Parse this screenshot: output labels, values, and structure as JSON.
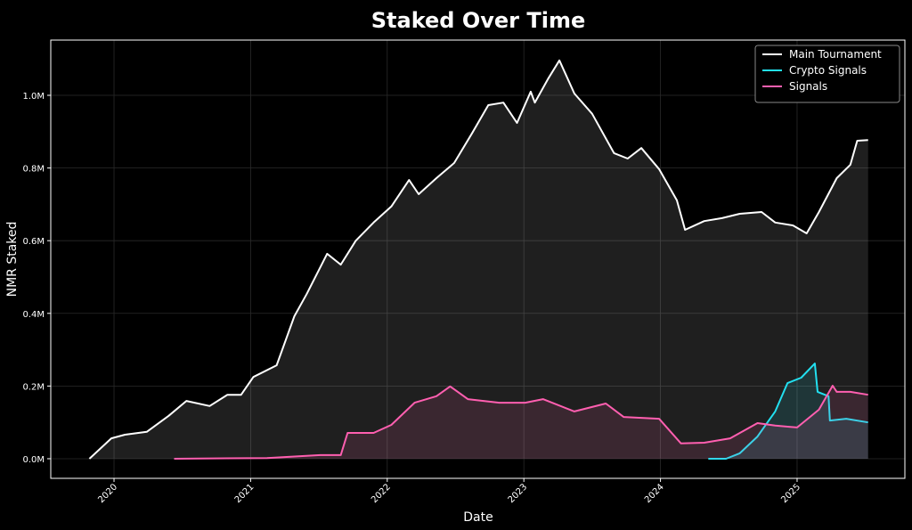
{
  "chart_data": {
    "type": "line",
    "title": "Staked Over Time",
    "xlabel": "Date",
    "ylabel": "NMR Staked",
    "xlim": [
      2019.537,
      2025.789
    ],
    "xticks": [
      2020,
      2021,
      2022,
      2023,
      2024,
      2025
    ],
    "ylim": [
      -54000,
      1152000
    ],
    "yticks": [
      {
        "value": 0,
        "label": "0.0M"
      },
      {
        "value": 200000,
        "label": "0.2M"
      },
      {
        "value": 400000,
        "label": "0.4M"
      },
      {
        "value": 600000,
        "label": "0.6M"
      },
      {
        "value": 800000,
        "label": "0.8M"
      },
      {
        "value": 1000000,
        "label": "1.0M"
      }
    ],
    "grid": true,
    "legend": "upper right",
    "fill": true,
    "series": [
      {
        "name": "Main Tournament",
        "color": "#ffffff",
        "x": [
          2019.82,
          2019.98,
          2020.08,
          2020.24,
          2020.4,
          2020.53,
          2020.7,
          2020.83,
          2020.93,
          2021.02,
          2021.19,
          2021.32,
          2021.41,
          2021.56,
          2021.66,
          2021.77,
          2021.9,
          2022.03,
          2022.16,
          2022.23,
          2022.36,
          2022.49,
          2022.62,
          2022.74,
          2022.85,
          2022.95,
          2023.05,
          2023.08,
          2023.18,
          2023.26,
          2023.37,
          2023.5,
          2023.66,
          2023.76,
          2023.86,
          2023.99,
          2024.12,
          2024.18,
          2024.32,
          2024.45,
          2024.58,
          2024.74,
          2024.84,
          2024.97,
          2025.07,
          2025.16,
          2025.29,
          2025.39,
          2025.44,
          2025.52
        ],
        "values": [
          0,
          56000,
          66000,
          74000,
          118000,
          159000,
          145000,
          176000,
          176000,
          225000,
          257000,
          392000,
          453000,
          564000,
          534000,
          600000,
          650000,
          694000,
          767000,
          728000,
          772000,
          814000,
          895000,
          973000,
          980000,
          924000,
          1010000,
          980000,
          1047000,
          1096000,
          1005000,
          949000,
          841000,
          826000,
          855000,
          797000,
          711000,
          630000,
          654000,
          662000,
          674000,
          679000,
          650000,
          642000,
          620000,
          679000,
          772000,
          809000,
          875000,
          877000
        ]
      },
      {
        "name": "Crypto Signals",
        "color": "#22e0f0",
        "x": [
          2024.35,
          2024.48,
          2024.58,
          2024.71,
          2024.84,
          2024.93,
          2025.03,
          2025.13,
          2025.15,
          2025.23,
          2025.24,
          2025.36,
          2025.52
        ],
        "values": [
          0,
          0,
          15000,
          61000,
          130000,
          208000,
          223000,
          262000,
          184000,
          172000,
          105000,
          110000,
          100000
        ]
      },
      {
        "name": "Signals",
        "color": "#ff5fb0",
        "x": [
          2020.44,
          2021.12,
          2021.51,
          2021.66,
          2021.71,
          2021.9,
          2022.03,
          2022.2,
          2022.36,
          2022.46,
          2022.59,
          2022.82,
          2023.01,
          2023.14,
          2023.37,
          2023.6,
          2023.73,
          2023.99,
          2024.15,
          2024.32,
          2024.51,
          2024.71,
          2024.84,
          2025.0,
          2025.16,
          2025.26,
          2025.29,
          2025.39,
          2025.52
        ],
        "values": [
          0,
          2000,
          10000,
          10000,
          71000,
          71000,
          93000,
          154000,
          172000,
          199000,
          164000,
          154000,
          154000,
          164000,
          130000,
          152000,
          115000,
          110000,
          42000,
          44000,
          56000,
          98000,
          91000,
          86000,
          135000,
          201000,
          184000,
          184000,
          176000
        ]
      }
    ]
  }
}
